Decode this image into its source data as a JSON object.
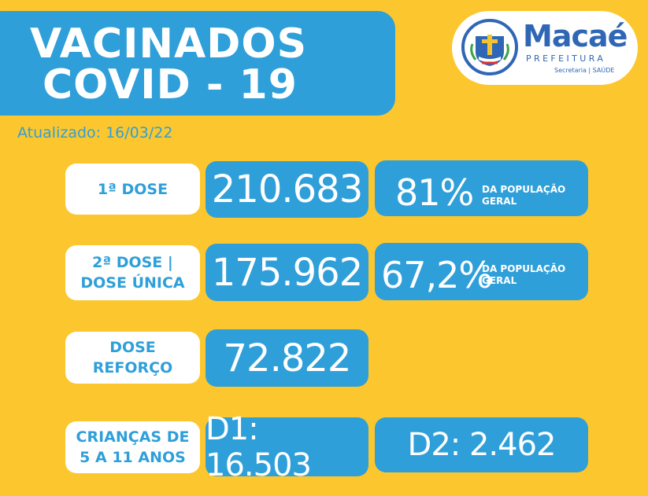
{
  "title": {
    "line1": "VACINADOS",
    "line2": "COVID - 19"
  },
  "updated": "Atualizado: 16/03/22",
  "logo": {
    "name": "Macaé",
    "subtitle": "PREFEITURA",
    "secretaria": "Secretaria | SAÚDE"
  },
  "rows": {
    "dose1": {
      "label": "1ª DOSE",
      "value": "210.683",
      "percent": "81%",
      "percent_note": "DA POPULAÇÃO GERAL"
    },
    "dose2": {
      "label": "2ª DOSE | DOSE ÚNICA",
      "value": "175.962",
      "percent": "67,2%",
      "percent_note": "DA POPULAÇÃO GERAL"
    },
    "booster": {
      "label": "DOSE REFORÇO",
      "value": "72.822"
    },
    "children": {
      "label": "CRIANÇAS DE 5 A 11 ANOS",
      "d1": "D1: 16.503",
      "d2": "D2: 2.462"
    }
  },
  "colors": {
    "background": "#fcc72e",
    "accent": "#2f9fd9",
    "brand": "#2f66b5"
  }
}
